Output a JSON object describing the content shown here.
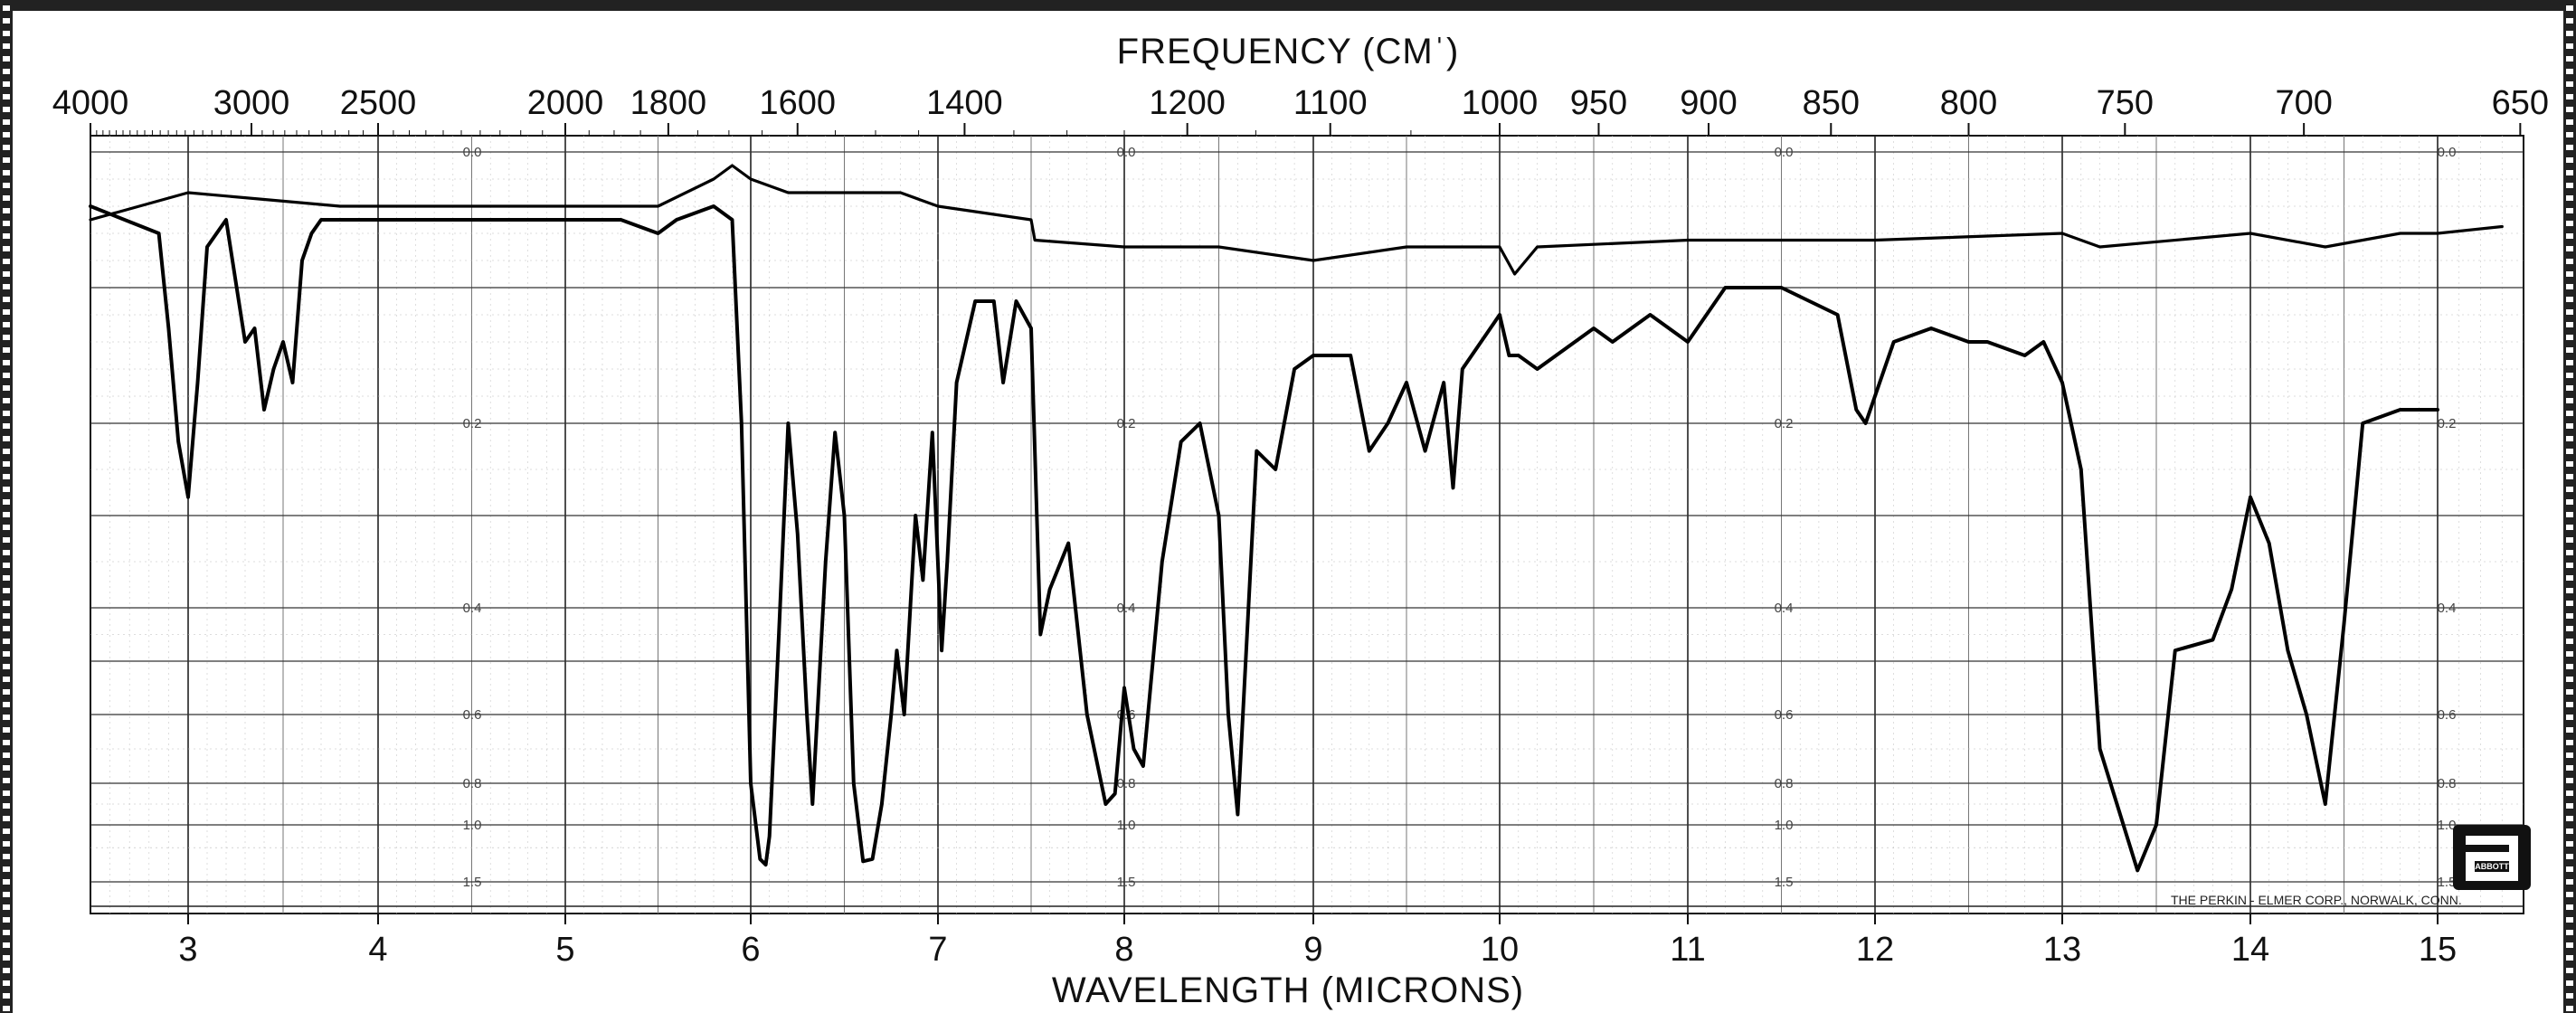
{
  "chart_data": {
    "type": "line",
    "title": "",
    "top_axis_label": "FREQUENCY (CMˈ)",
    "xlabel": "WAVELENGTH (MICRONS)",
    "ylabel": "",
    "x_range_microns": [
      2.5,
      15.4
    ],
    "y_scale": "absorbance",
    "y_range": [
      0,
      1.5
    ],
    "grid": true,
    "bottom_tick_labels": [
      "3",
      "4",
      "5",
      "6",
      "7",
      "8",
      "9",
      "10",
      "11",
      "12",
      "13",
      "14",
      "15"
    ],
    "top_tick_labels": [
      "4000",
      "3000",
      "2500",
      "2000",
      "1800",
      "1600",
      "1400",
      "1200",
      "1100",
      "1000",
      "950",
      "900",
      "850",
      "800",
      "750",
      "700",
      "650"
    ],
    "absorbance_tick_labels": [
      "0.0",
      "0.2",
      "0.4",
      "0.6",
      "0.8",
      "1.0",
      "1.5"
    ],
    "credit": "THE PERKIN - ELMER CORP., NORWALK, CONN.",
    "logo_text": "ABBOTT",
    "series": [
      {
        "role": "sample",
        "x": [
          2.5,
          2.85,
          2.9,
          2.95,
          3.0,
          3.05,
          3.1,
          3.2,
          3.3,
          3.35,
          3.4,
          3.45,
          3.5,
          3.55,
          3.6,
          3.65,
          3.7,
          4.0,
          4.5,
          5.0,
          5.3,
          5.5,
          5.6,
          5.8,
          5.9,
          5.95,
          6.0,
          6.05,
          6.08,
          6.1,
          6.15,
          6.2,
          6.25,
          6.3,
          6.33,
          6.4,
          6.45,
          6.5,
          6.55,
          6.6,
          6.65,
          6.7,
          6.75,
          6.78,
          6.82,
          6.88,
          6.92,
          6.97,
          7.02,
          7.05,
          7.1,
          7.2,
          7.3,
          7.35,
          7.42,
          7.5,
          7.55,
          7.6,
          7.7,
          7.8,
          7.9,
          7.95,
          8.0,
          8.05,
          8.1,
          8.2,
          8.3,
          8.4,
          8.5,
          8.55,
          8.6,
          8.7,
          8.8,
          8.9,
          9.0,
          9.2,
          9.3,
          9.4,
          9.5,
          9.6,
          9.7,
          9.75,
          9.8,
          10.0,
          10.05,
          10.1,
          10.2,
          10.5,
          10.6,
          10.8,
          11.0,
          11.2,
          11.5,
          11.8,
          11.9,
          11.95,
          12.1,
          12.3,
          12.5,
          12.6,
          12.8,
          12.9,
          13.0,
          13.1,
          13.2,
          13.4,
          13.5,
          13.6,
          13.8,
          13.9,
          14.0,
          14.1,
          14.2,
          14.3,
          14.4,
          14.5,
          14.6,
          14.8,
          15.0
        ],
        "y": [
          0.04,
          0.06,
          0.13,
          0.22,
          0.28,
          0.17,
          0.07,
          0.05,
          0.14,
          0.13,
          0.19,
          0.16,
          0.14,
          0.17,
          0.08,
          0.06,
          0.05,
          0.05,
          0.05,
          0.05,
          0.05,
          0.06,
          0.05,
          0.04,
          0.05,
          0.2,
          0.8,
          1.3,
          1.35,
          1.1,
          0.45,
          0.2,
          0.32,
          0.6,
          0.9,
          0.35,
          0.21,
          0.3,
          0.8,
          1.32,
          1.3,
          0.9,
          0.6,
          0.48,
          0.6,
          0.3,
          0.37,
          0.21,
          0.48,
          0.35,
          0.17,
          0.11,
          0.11,
          0.17,
          0.11,
          0.13,
          0.45,
          0.38,
          0.33,
          0.6,
          0.9,
          0.85,
          0.55,
          0.7,
          0.75,
          0.35,
          0.22,
          0.2,
          0.3,
          0.6,
          0.95,
          0.23,
          0.25,
          0.16,
          0.15,
          0.15,
          0.23,
          0.2,
          0.17,
          0.23,
          0.17,
          0.27,
          0.16,
          0.12,
          0.15,
          0.15,
          0.16,
          0.13,
          0.14,
          0.12,
          0.14,
          0.1,
          0.1,
          0.12,
          0.19,
          0.2,
          0.14,
          0.13,
          0.14,
          0.14,
          0.15,
          0.14,
          0.17,
          0.25,
          0.7,
          1.4,
          1.0,
          0.48,
          0.46,
          0.38,
          0.28,
          0.33,
          0.48,
          0.6,
          0.9,
          0.43,
          0.2,
          0.19,
          0.19
        ]
      },
      {
        "role": "reference",
        "x": [
          2.5,
          3.0,
          3.4,
          3.8,
          4.5,
          5.0,
          5.5,
          5.8,
          5.9,
          6.0,
          6.2,
          6.5,
          6.8,
          7.0,
          7.5,
          7.52,
          8.0,
          8.5,
          9.0,
          9.5,
          10.0,
          10.08,
          10.2,
          11.0,
          12.0,
          13.0,
          13.2,
          14.0,
          14.4,
          14.8,
          15.0,
          15.3
        ],
        "y": [
          0.05,
          0.03,
          0.035,
          0.04,
          0.04,
          0.04,
          0.04,
          0.02,
          0.01,
          0.02,
          0.03,
          0.03,
          0.03,
          0.04,
          0.05,
          0.065,
          0.07,
          0.07,
          0.08,
          0.07,
          0.07,
          0.09,
          0.07,
          0.065,
          0.065,
          0.06,
          0.07,
          0.06,
          0.07,
          0.06,
          0.06,
          0.055
        ]
      }
    ]
  }
}
